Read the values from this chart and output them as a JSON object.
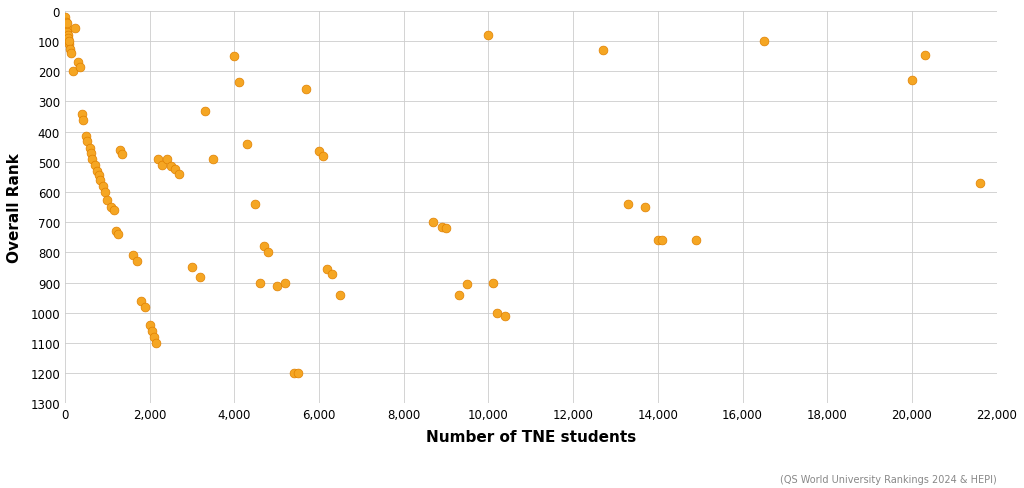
{
  "title": "",
  "xlabel": "Number of TNE students",
  "ylabel": "Overall Rank",
  "caption": "(QS World University Rankings 2024 & HEPI)",
  "dot_color": "#F5A623",
  "dot_edge_color": "#E08000",
  "background_color": "#ffffff",
  "grid_color": "#cccccc",
  "xlim": [
    0,
    22000
  ],
  "ylim": [
    1300,
    0
  ],
  "xticks": [
    0,
    2000,
    4000,
    6000,
    8000,
    10000,
    12000,
    14000,
    16000,
    18000,
    20000,
    22000
  ],
  "yticks": [
    0,
    100,
    200,
    300,
    400,
    500,
    600,
    700,
    800,
    900,
    1000,
    1100,
    1200,
    1300
  ],
  "points": [
    [
      10,
      20
    ],
    [
      20,
      35
    ],
    [
      30,
      50
    ],
    [
      40,
      60
    ],
    [
      50,
      70
    ],
    [
      60,
      40
    ],
    [
      70,
      80
    ],
    [
      80,
      90
    ],
    [
      90,
      110
    ],
    [
      100,
      100
    ],
    [
      120,
      125
    ],
    [
      140,
      140
    ],
    [
      180,
      200
    ],
    [
      250,
      55
    ],
    [
      300,
      170
    ],
    [
      350,
      185
    ],
    [
      400,
      340
    ],
    [
      420,
      360
    ],
    [
      500,
      415
    ],
    [
      520,
      430
    ],
    [
      600,
      455
    ],
    [
      620,
      470
    ],
    [
      650,
      490
    ],
    [
      700,
      510
    ],
    [
      750,
      530
    ],
    [
      800,
      545
    ],
    [
      820,
      560
    ],
    [
      900,
      580
    ],
    [
      950,
      600
    ],
    [
      1000,
      625
    ],
    [
      1100,
      650
    ],
    [
      1150,
      660
    ],
    [
      1200,
      730
    ],
    [
      1250,
      740
    ],
    [
      1300,
      460
    ],
    [
      1350,
      475
    ],
    [
      1600,
      810
    ],
    [
      1700,
      830
    ],
    [
      1800,
      960
    ],
    [
      1900,
      980
    ],
    [
      2000,
      1040
    ],
    [
      2050,
      1060
    ],
    [
      2100,
      1080
    ],
    [
      2150,
      1100
    ],
    [
      2200,
      490
    ],
    [
      2300,
      510
    ],
    [
      2400,
      490
    ],
    [
      2500,
      515
    ],
    [
      2600,
      525
    ],
    [
      2700,
      540
    ],
    [
      3000,
      850
    ],
    [
      3200,
      880
    ],
    [
      3300,
      330
    ],
    [
      3500,
      490
    ],
    [
      4000,
      150
    ],
    [
      4100,
      235
    ],
    [
      4300,
      440
    ],
    [
      4500,
      640
    ],
    [
      4600,
      900
    ],
    [
      4700,
      780
    ],
    [
      4800,
      800
    ],
    [
      5000,
      910
    ],
    [
      5200,
      900
    ],
    [
      5400,
      1200
    ],
    [
      5500,
      1200
    ],
    [
      5700,
      260
    ],
    [
      6000,
      465
    ],
    [
      6100,
      480
    ],
    [
      6200,
      855
    ],
    [
      6300,
      870
    ],
    [
      6500,
      940
    ],
    [
      8700,
      700
    ],
    [
      8900,
      715
    ],
    [
      9000,
      720
    ],
    [
      9300,
      940
    ],
    [
      9500,
      905
    ],
    [
      10000,
      80
    ],
    [
      10100,
      900
    ],
    [
      10200,
      1000
    ],
    [
      10400,
      1010
    ],
    [
      12700,
      130
    ],
    [
      13300,
      640
    ],
    [
      13700,
      650
    ],
    [
      14000,
      760
    ],
    [
      14100,
      760
    ],
    [
      14900,
      760
    ],
    [
      16500,
      100
    ],
    [
      20000,
      230
    ],
    [
      20300,
      145
    ],
    [
      21600,
      570
    ]
  ]
}
